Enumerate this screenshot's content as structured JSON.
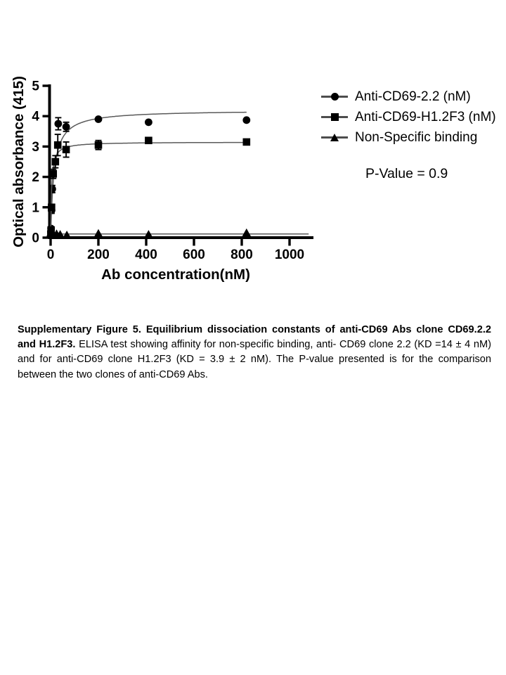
{
  "chart_data": {
    "type": "scatter",
    "title": "",
    "x_axis": {
      "label": "Ab concentration(nM)",
      "ticks": [
        0,
        200,
        400,
        600,
        800,
        1000
      ],
      "range": [
        0,
        1100
      ]
    },
    "y_axis": {
      "label": "Optical absorbance (415)",
      "ticks": [
        0,
        1,
        2,
        3,
        4,
        5
      ],
      "range": [
        0,
        5
      ]
    },
    "grid": false,
    "legend_position": "right",
    "annotation": "P-Value = 0.9",
    "series": [
      {
        "name": "Anti-CD69-2.2 (nM)",
        "marker": "circle",
        "color": "#000000",
        "x": [
          1,
          2,
          4,
          7,
          32,
          65,
          200,
          410,
          820
        ],
        "y": [
          0.2,
          0.3,
          0.9,
          1.6,
          3.75,
          3.65,
          3.9,
          3.8,
          3.87
        ],
        "y_err": [
          0,
          0.06,
          0.1,
          0.12,
          0.2,
          0.15,
          0,
          0,
          0
        ],
        "fit": {
          "model": "one_site_binding",
          "bmax": 4.2,
          "kd": 14,
          "x_end": 820
        }
      },
      {
        "name": "Anti-CD69-H1.2F3 (nM)",
        "marker": "square",
        "color": "#000000",
        "x": [
          1,
          2,
          4,
          11,
          20,
          30,
          65,
          200,
          410,
          820
        ],
        "y": [
          0.1,
          0.25,
          1.0,
          2.1,
          2.5,
          3.05,
          2.9,
          3.05,
          3.2,
          3.15
        ],
        "y_err": [
          0,
          0.05,
          0.1,
          0.15,
          0.2,
          0.35,
          0.25,
          0.15,
          0,
          0
        ],
        "fit": {
          "model": "one_site_binding",
          "bmax": 3.15,
          "kd": 3.9,
          "x_end": 820
        }
      },
      {
        "name": "Non-Specific binding",
        "marker": "triangle",
        "color": "#000000",
        "x": [
          1,
          4,
          13,
          25,
          40,
          68,
          200,
          410,
          820
        ],
        "y": [
          0.15,
          0.1,
          0.1,
          0.12,
          0.1,
          0.08,
          0.13,
          0.1,
          0.15
        ],
        "y_err": [
          0,
          0,
          0,
          0,
          0,
          0,
          0,
          0,
          0
        ],
        "fit": {
          "model": "flat",
          "value": 0.12,
          "x_end": 1080
        }
      }
    ]
  },
  "caption": {
    "bold": "Supplementary Figure 5. Equilibrium dissociation constants of anti-CD69 Abs clone CD69.2.2 and H1.2F3.",
    "body": "ELISA test showing affinity for non-specific binding, anti- CD69 clone 2.2 (KD =14 ± 4 nM) and for anti-CD69 clone H1.2F3 (KD = 3.9 ± 2 nM). The P-value presented is for the comparison between the two clones of anti-CD69 Abs."
  }
}
